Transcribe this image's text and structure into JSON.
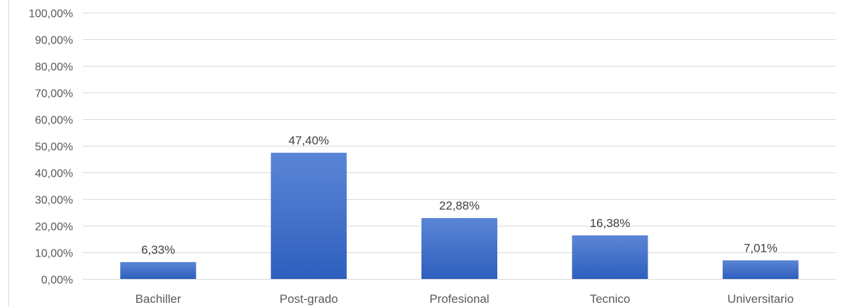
{
  "chart_data": {
    "type": "bar",
    "title": "",
    "xlabel": "",
    "ylabel": "",
    "categories": [
      "Bachiller",
      "Post-grado",
      "Profesional",
      "Tecnico",
      "Universitario"
    ],
    "values": [
      6.33,
      47.4,
      22.88,
      16.38,
      7.01
    ],
    "data_labels": [
      "6,33%",
      "47,40%",
      "22,88%",
      "16,38%",
      "7,01%"
    ],
    "ylim": [
      0,
      100
    ],
    "y_ticks": [
      0,
      10,
      20,
      30,
      40,
      50,
      60,
      70,
      80,
      90,
      100
    ],
    "y_tick_labels": [
      "0,00%",
      "10,00%",
      "20,00%",
      "30,00%",
      "40,00%",
      "50,00%",
      "60,00%",
      "70,00%",
      "80,00%",
      "90,00%",
      "100,00%"
    ],
    "grid": true,
    "legend": "none",
    "colors": {
      "bar_top": "#5b86d6",
      "bar_bottom": "#2e5fbe",
      "grid": "#d9d9d9",
      "text": "#595959"
    }
  }
}
